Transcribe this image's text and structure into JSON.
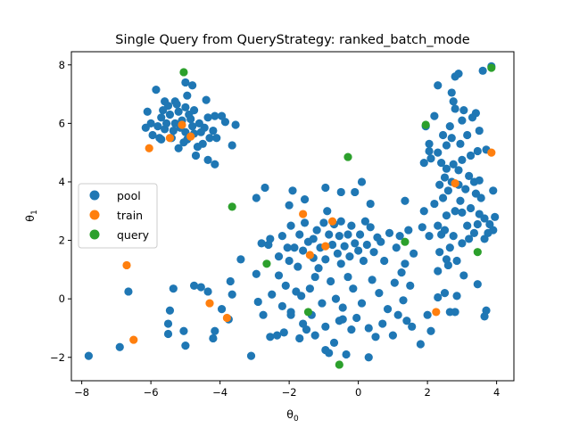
{
  "chart_data": {
    "type": "scatter",
    "title": "Single Query from QueryStrategy: ranked_batch_mode",
    "xlabel_base": "θ",
    "xlabel_sub": "0",
    "ylabel_base": "θ",
    "ylabel_sub": "1",
    "xlim": [
      -8.3,
      4.5
    ],
    "ylim": [
      -2.8,
      8.45
    ],
    "xticks": [
      -8,
      -6,
      -4,
      -2,
      0,
      2,
      4
    ],
    "xtick_labels": [
      "−8",
      "−6",
      "−4",
      "−2",
      "0",
      "2",
      "4"
    ],
    "yticks": [
      -2,
      0,
      2,
      4,
      6,
      8
    ],
    "ytick_labels": [
      "−2",
      "0",
      "2",
      "4",
      "6",
      "8"
    ],
    "legend_position": "center-left",
    "series": [
      {
        "name": "pool",
        "color": "#1f77b4",
        "points": [
          [
            -5.3,
            6.0
          ],
          [
            -5.6,
            5.8
          ],
          [
            -5.1,
            6.1
          ],
          [
            -4.8,
            5.9
          ],
          [
            -5.4,
            5.5
          ],
          [
            -5.0,
            5.7
          ],
          [
            -5.7,
            6.2
          ],
          [
            -4.6,
            6.0
          ],
          [
            -5.2,
            6.4
          ],
          [
            -5.5,
            6.6
          ],
          [
            -4.9,
            6.3
          ],
          [
            -5.8,
            5.9
          ],
          [
            -6.0,
            6.0
          ],
          [
            -5.35,
            5.75
          ],
          [
            -5.05,
            5.35
          ],
          [
            -4.75,
            5.65
          ],
          [
            -4.45,
            5.85
          ],
          [
            -4.35,
            6.2
          ],
          [
            -4.2,
            5.75
          ],
          [
            -4.3,
            5.5
          ],
          [
            -4.5,
            5.3
          ],
          [
            -5.75,
            5.5
          ],
          [
            -5.95,
            5.6
          ],
          [
            -6.15,
            5.85
          ],
          [
            -6.1,
            6.4
          ],
          [
            -5.6,
            6.75
          ],
          [
            -5.3,
            6.75
          ],
          [
            -5.0,
            6.55
          ],
          [
            -4.75,
            6.45
          ],
          [
            -4.4,
            6.8
          ],
          [
            -4.15,
            6.25
          ],
          [
            -3.95,
            6.25
          ],
          [
            -4.1,
            5.5
          ],
          [
            -4.35,
            4.75
          ],
          [
            -4.15,
            4.6
          ],
          [
            -3.85,
            6.05
          ],
          [
            -3.55,
            5.95
          ],
          [
            -3.65,
            5.25
          ],
          [
            -5.85,
            7.15
          ],
          [
            -5.0,
            7.4
          ],
          [
            -4.8,
            7.3
          ],
          [
            -4.7,
            4.9
          ],
          [
            -5.25,
            6.65
          ],
          [
            -5.45,
            6.3
          ],
          [
            -5.65,
            6.45
          ],
          [
            -4.95,
            5.45
          ],
          [
            -5.2,
            5.15
          ],
          [
            -4.65,
            5.2
          ],
          [
            -4.95,
            6.95
          ],
          [
            -5.7,
            5.45
          ],
          [
            -5.55,
            6.0
          ],
          [
            -5.15,
            5.85
          ],
          [
            -4.85,
            6.15
          ],
          [
            -4.55,
            5.7
          ],
          [
            -7.8,
            -1.95
          ],
          [
            -6.9,
            -1.65
          ],
          [
            -6.65,
            0.25
          ],
          [
            -5.5,
            -1.2
          ],
          [
            -5.5,
            -0.85
          ],
          [
            -5.45,
            -0.4
          ],
          [
            -5.35,
            0.35
          ],
          [
            -5.05,
            -1.1
          ],
          [
            -5.0,
            -1.6
          ],
          [
            -4.75,
            0.45
          ],
          [
            -4.55,
            0.4
          ],
          [
            -4.35,
            0.25
          ],
          [
            -4.2,
            -1.35
          ],
          [
            -4.15,
            -1.1
          ],
          [
            -3.95,
            -0.35
          ],
          [
            -3.75,
            -0.7
          ],
          [
            -3.7,
            0.6
          ],
          [
            -3.4,
            1.35
          ],
          [
            -3.1,
            -1.95
          ],
          [
            -2.95,
            0.85
          ],
          [
            -2.9,
            -0.1
          ],
          [
            -2.8,
            1.9
          ],
          [
            -2.75,
            -0.55
          ],
          [
            -2.6,
            1.85
          ],
          [
            -2.55,
            -1.3
          ],
          [
            -2.5,
            0.15
          ],
          [
            -2.35,
            -1.25
          ],
          [
            -2.3,
            1.45
          ],
          [
            -2.15,
            -1.15
          ],
          [
            -2.3,
            0.8
          ],
          [
            -2.2,
            2.15
          ],
          [
            -2.1,
            0.45
          ],
          [
            -2.0,
            1.3
          ],
          [
            -1.95,
            -0.45
          ],
          [
            -1.95,
            2.5
          ],
          [
            -1.85,
            1.75
          ],
          [
            -1.8,
            0.25
          ],
          [
            -1.75,
            1.1
          ],
          [
            -1.7,
            2.2
          ],
          [
            -1.65,
            0.1
          ],
          [
            -1.6,
            -0.85
          ],
          [
            -1.6,
            1.65
          ],
          [
            -1.55,
            2.6
          ],
          [
            -1.5,
            -1.05
          ],
          [
            -1.45,
            1.95
          ],
          [
            -1.4,
            0.35
          ],
          [
            -1.35,
            -0.55
          ],
          [
            -1.3,
            1.4
          ],
          [
            -1.3,
            2.05
          ],
          [
            -1.25,
            -1.25
          ],
          [
            -1.25,
            0.75
          ],
          [
            -1.2,
            2.35
          ],
          [
            -1.15,
            1.05
          ],
          [
            -1.1,
            1.75
          ],
          [
            -1.05,
            -0.15
          ],
          [
            -1.0,
            2.6
          ],
          [
            -0.95,
            -0.95
          ],
          [
            -0.95,
            1.35
          ],
          [
            -0.9,
            3.0
          ],
          [
            -0.85,
            2.2
          ],
          [
            -0.85,
            -1.85
          ],
          [
            -0.8,
            0.6
          ],
          [
            -0.75,
            1.85
          ],
          [
            -0.7,
            -1.5
          ],
          [
            -0.7,
            2.55
          ],
          [
            -0.65,
            0.0
          ],
          [
            -0.6,
            1.55
          ],
          [
            -0.55,
            2.15
          ],
          [
            -0.55,
            -0.75
          ],
          [
            -0.5,
            1.2
          ],
          [
            -0.5,
            2.65
          ],
          [
            -0.45,
            -0.3
          ],
          [
            -0.4,
            1.8
          ],
          [
            -0.35,
            -1.9
          ],
          [
            -0.3,
            2.2
          ],
          [
            -0.3,
            0.75
          ],
          [
            -0.25,
            1.45
          ],
          [
            -0.2,
            -1.05
          ],
          [
            -0.2,
            2.5
          ],
          [
            -0.15,
            0.35
          ],
          [
            -0.1,
            1.9
          ],
          [
            -0.05,
            -0.65
          ],
          [
            0.0,
            1.65
          ],
          [
            0.05,
            2.2
          ],
          [
            0.1,
            -0.15
          ],
          [
            0.15,
            1.3
          ],
          [
            0.2,
            2.65
          ],
          [
            0.25,
            1.85
          ],
          [
            0.3,
            -1.0
          ],
          [
            0.35,
            2.45
          ],
          [
            0.4,
            0.65
          ],
          [
            0.45,
            1.6
          ],
          [
            0.5,
            -1.3
          ],
          [
            0.55,
            2.1
          ],
          [
            0.6,
            0.2
          ],
          [
            0.65,
            1.95
          ],
          [
            0.7,
            -0.85
          ],
          [
            0.75,
            1.3
          ],
          [
            0.85,
            -0.35
          ],
          [
            0.9,
            2.25
          ],
          [
            1.0,
            -1.25
          ],
          [
            1.05,
            0.55
          ],
          [
            1.1,
            1.75
          ],
          [
            1.15,
            -0.55
          ],
          [
            1.2,
            2.15
          ],
          [
            1.25,
            0.9
          ],
          [
            1.3,
            -0.05
          ],
          [
            1.35,
            1.2
          ],
          [
            1.4,
            -0.75
          ],
          [
            1.45,
            2.35
          ],
          [
            1.5,
            0.45
          ],
          [
            1.55,
            -0.95
          ],
          [
            1.6,
            1.55
          ],
          [
            1.35,
            3.35
          ],
          [
            0.35,
            3.25
          ],
          [
            0.1,
            4.0
          ],
          [
            -0.5,
            3.65
          ],
          [
            -0.1,
            3.65
          ],
          [
            -0.95,
            3.8
          ],
          [
            -1.55,
            3.4
          ],
          [
            -1.9,
            3.7
          ],
          [
            -2.7,
            3.8
          ],
          [
            -2.95,
            3.45
          ],
          [
            -2.0,
            3.2
          ],
          [
            -3.65,
            0.15
          ],
          [
            -2.2,
            -0.25
          ],
          [
            -2.55,
            2.05
          ],
          [
            -2.05,
            1.75
          ],
          [
            -0.95,
            -1.75
          ],
          [
            0.3,
            -2.0
          ],
          [
            -1.7,
            -1.35
          ],
          [
            -1.95,
            -0.55
          ],
          [
            -0.45,
            -0.7
          ],
          [
            1.8,
            -1.55
          ],
          [
            2.1,
            -1.1
          ],
          [
            2.0,
            -0.55
          ],
          [
            2.3,
            0.05
          ],
          [
            2.5,
            0.2
          ],
          [
            2.65,
            -0.45
          ],
          [
            2.8,
            -0.45
          ],
          [
            2.85,
            0.1
          ],
          [
            3.05,
            0.8
          ],
          [
            3.45,
            0.5
          ],
          [
            3.65,
            -0.6
          ],
          [
            3.7,
            -0.4
          ],
          [
            2.3,
            0.95
          ],
          [
            2.6,
            1.15
          ],
          [
            2.55,
            1.35
          ],
          [
            2.85,
            1.3
          ],
          [
            2.35,
            1.6
          ],
          [
            2.65,
            1.75
          ],
          [
            2.4,
            2.2
          ],
          [
            2.75,
            2.15
          ],
          [
            3.0,
            1.9
          ],
          [
            3.2,
            2.05
          ],
          [
            3.35,
            2.25
          ],
          [
            3.15,
            2.5
          ],
          [
            2.3,
            2.5
          ],
          [
            2.55,
            2.85
          ],
          [
            2.8,
            3.0
          ],
          [
            2.2,
            3.25
          ],
          [
            2.45,
            3.45
          ],
          [
            2.95,
            3.35
          ],
          [
            3.25,
            3.1
          ],
          [
            3.5,
            2.9
          ],
          [
            3.65,
            2.75
          ],
          [
            3.8,
            2.55
          ],
          [
            3.9,
            2.35
          ],
          [
            3.75,
            2.25
          ],
          [
            2.35,
            3.9
          ],
          [
            2.5,
            4.15
          ],
          [
            2.7,
            4.0
          ],
          [
            2.9,
            3.9
          ],
          [
            3.1,
            3.75
          ],
          [
            3.4,
            3.6
          ],
          [
            3.55,
            3.45
          ],
          [
            3.9,
            3.7
          ],
          [
            3.95,
            2.8
          ],
          [
            3.35,
            4.0
          ],
          [
            3.5,
            4.05
          ],
          [
            2.55,
            4.45
          ],
          [
            2.75,
            4.6
          ],
          [
            3.0,
            4.75
          ],
          [
            3.25,
            4.9
          ],
          [
            3.45,
            5.05
          ],
          [
            3.7,
            5.1
          ],
          [
            2.3,
            5.0
          ],
          [
            2.55,
            5.25
          ],
          [
            2.7,
            5.5
          ],
          [
            2.95,
            5.3
          ],
          [
            3.15,
            5.6
          ],
          [
            2.65,
            5.9
          ],
          [
            3.0,
            6.1
          ],
          [
            3.4,
            6.35
          ],
          [
            2.1,
            4.8
          ],
          [
            1.95,
            5.9
          ],
          [
            2.05,
            5.05
          ],
          [
            1.9,
            4.65
          ],
          [
            2.2,
            6.25
          ],
          [
            2.45,
            5.6
          ],
          [
            2.8,
            6.5
          ],
          [
            3.05,
            6.45
          ],
          [
            3.3,
            6.2
          ],
          [
            3.5,
            5.75
          ],
          [
            2.75,
            6.75
          ],
          [
            2.7,
            7.05
          ],
          [
            2.8,
            7.6
          ],
          [
            2.9,
            7.7
          ],
          [
            2.3,
            7.3
          ],
          [
            3.6,
            7.8
          ],
          [
            3.85,
            7.95
          ],
          [
            2.05,
            5.3
          ],
          [
            2.4,
            4.65
          ],
          [
            2.9,
            4.4
          ],
          [
            3.2,
            4.2
          ],
          [
            2.6,
            3.7
          ],
          [
            3.0,
            2.95
          ],
          [
            3.45,
            2.55
          ],
          [
            3.65,
            2.05
          ],
          [
            2.5,
            2.35
          ],
          [
            1.9,
            3.0
          ],
          [
            1.85,
            2.45
          ],
          [
            2.05,
            2.15
          ]
        ]
      },
      {
        "name": "train",
        "color": "#ff7f0e",
        "points": [
          [
            -5.45,
            5.5
          ],
          [
            -5.1,
            5.95
          ],
          [
            -6.05,
            5.15
          ],
          [
            -4.85,
            5.55
          ],
          [
            -6.7,
            1.15
          ],
          [
            -6.5,
            -1.4
          ],
          [
            -4.3,
            -0.15
          ],
          [
            -3.8,
            -0.65
          ],
          [
            -1.6,
            2.9
          ],
          [
            -1.4,
            1.5
          ],
          [
            -0.95,
            1.8
          ],
          [
            -0.75,
            2.65
          ],
          [
            2.25,
            -0.45
          ],
          [
            2.8,
            3.95
          ],
          [
            3.85,
            5.0
          ]
        ]
      },
      {
        "name": "query",
        "color": "#2ca02c",
        "points": [
          [
            -5.05,
            7.75
          ],
          [
            -3.65,
            3.15
          ],
          [
            -2.65,
            1.2
          ],
          [
            -1.45,
            -0.45
          ],
          [
            -0.3,
            4.85
          ],
          [
            -0.55,
            -2.25
          ],
          [
            1.35,
            1.95
          ],
          [
            1.95,
            5.95
          ],
          [
            3.45,
            1.6
          ],
          [
            3.85,
            7.9
          ]
        ]
      }
    ]
  }
}
